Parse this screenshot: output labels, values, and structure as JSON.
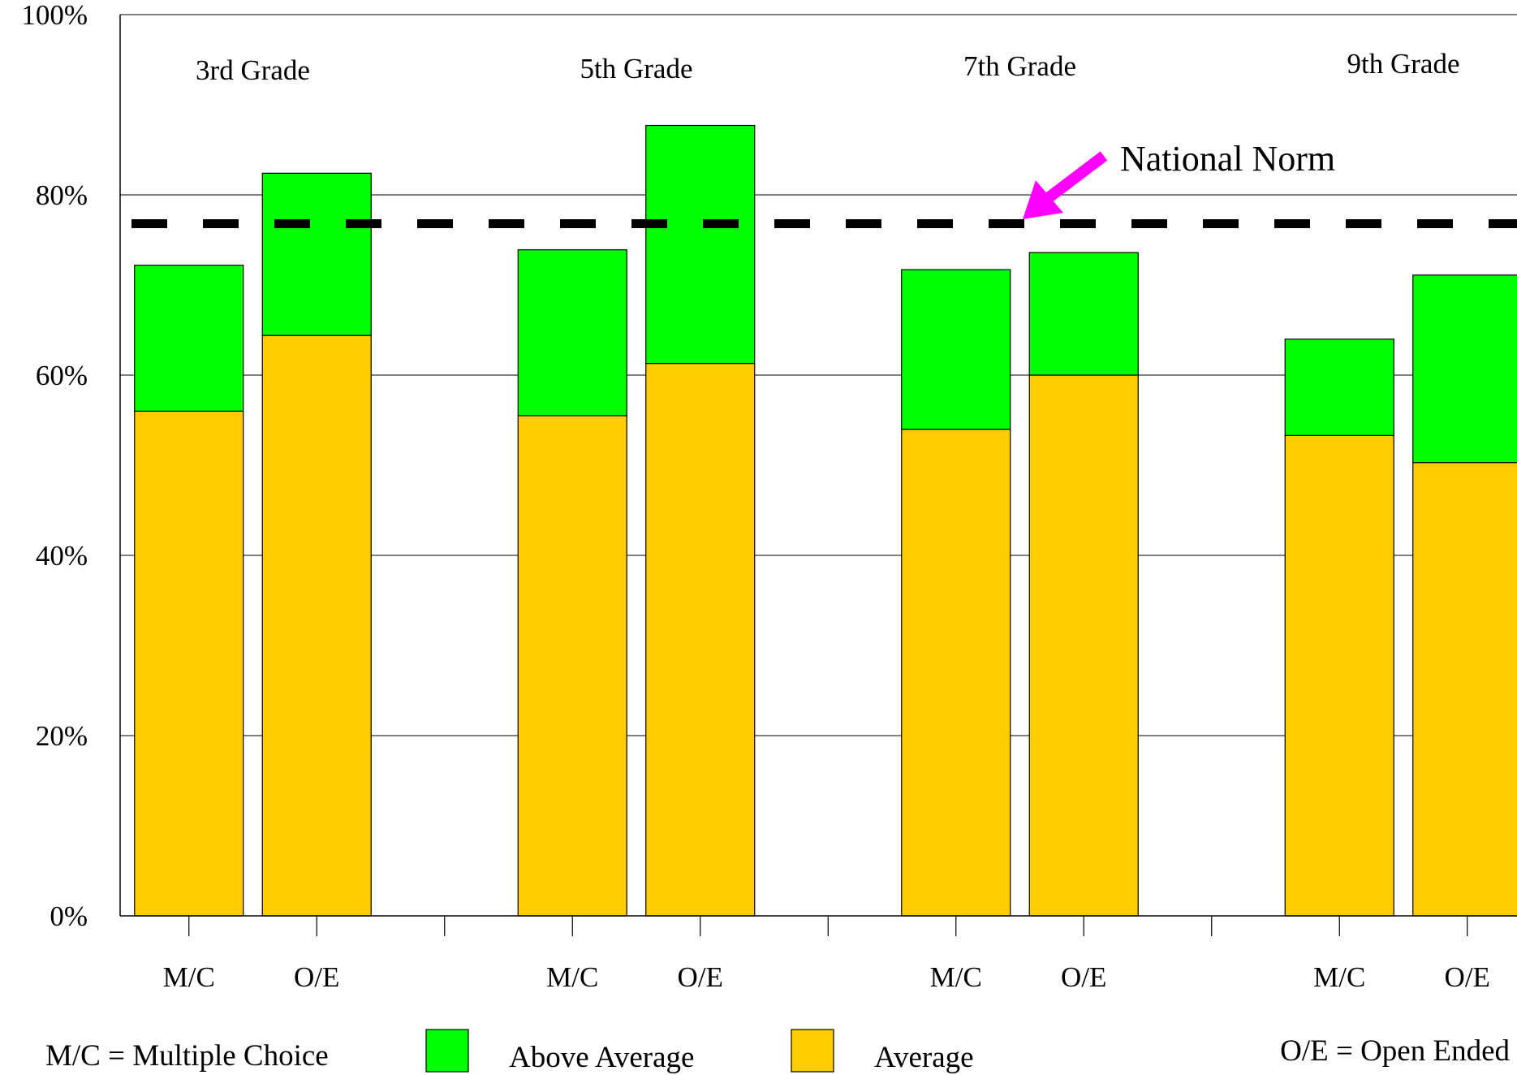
{
  "chart_data": {
    "type": "bar",
    "stacked": true,
    "ylim": [
      0,
      100
    ],
    "y_ticks": [
      0,
      20,
      40,
      60,
      80,
      100
    ],
    "y_tick_suffix": "%",
    "grid": true,
    "groups": [
      {
        "label": "3rd Grade",
        "categories": [
          "M/C",
          "O/E"
        ]
      },
      {
        "label": "5th Grade",
        "categories": [
          "M/C",
          "O/E"
        ]
      },
      {
        "label": "7th Grade",
        "categories": [
          "M/C",
          "O/E"
        ]
      },
      {
        "label": "9th Grade",
        "categories": [
          "M/C",
          "O/E"
        ]
      }
    ],
    "series": [
      {
        "name": "Average",
        "color": "#FFCC00",
        "values": [
          56,
          64.4,
          55.5,
          61.3,
          54,
          60,
          53.3,
          50.3
        ]
      },
      {
        "name": "Above Average",
        "color": "#00FF00",
        "values": [
          16.2,
          18,
          18.4,
          26.4,
          17.7,
          13.6,
          10.7,
          20.8
        ]
      }
    ],
    "reference_line": {
      "label": "National Norm",
      "value": 76.8,
      "style": "dashed",
      "arrow_color": "#FF00FF"
    },
    "legend": {
      "placement": "bottom",
      "items": [
        {
          "label": "Above Average",
          "color": "#00FF00"
        },
        {
          "label": "Average",
          "color": "#FFCC00"
        }
      ]
    },
    "notes": [
      "M/C = Multiple Choice",
      "O/E = Open Ended"
    ]
  }
}
